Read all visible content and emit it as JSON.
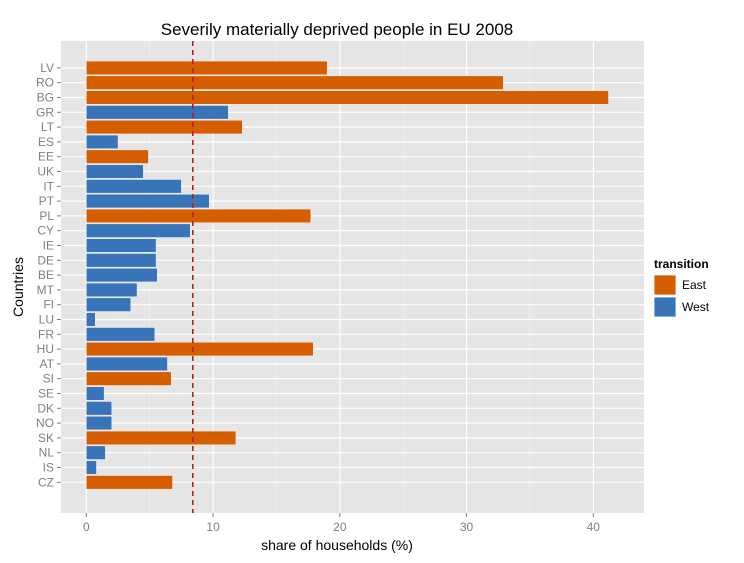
{
  "chart_data": {
    "type": "bar",
    "orientation": "horizontal",
    "title": "Severily materially deprived people in EU 2008",
    "xlabel": "share of households (%)",
    "ylabel": "Countries",
    "xlim": [
      -2,
      44
    ],
    "xticks": [
      0,
      10,
      20,
      30,
      40
    ],
    "grid": true,
    "legend_placement": "right",
    "legend_title": "transition",
    "groups": [
      {
        "name": "East",
        "color": "#D55E00"
      },
      {
        "name": "West",
        "color": "#3A74B8"
      }
    ],
    "reference_line": {
      "x": 8.4,
      "style": "dashed",
      "color": "#B22222"
    },
    "categories": [
      "LV",
      "RO",
      "BG",
      "GR",
      "LT",
      "ES",
      "EE",
      "UK",
      "IT",
      "PT",
      "PL",
      "CY",
      "IE",
      "DE",
      "BE",
      "MT",
      "FI",
      "LU",
      "FR",
      "HU",
      "AT",
      "SI",
      "SE",
      "DK",
      "NO",
      "SK",
      "NL",
      "IS",
      "CZ"
    ],
    "values": [
      19.0,
      32.9,
      41.2,
      11.2,
      12.3,
      2.5,
      4.9,
      4.5,
      7.5,
      9.7,
      17.7,
      8.2,
      5.5,
      5.5,
      5.6,
      4.0,
      3.5,
      0.7,
      5.4,
      17.9,
      6.4,
      6.7,
      1.4,
      2.0,
      2.0,
      11.8,
      1.5,
      0.8,
      6.8
    ],
    "group": [
      "East",
      "East",
      "East",
      "West",
      "East",
      "West",
      "East",
      "West",
      "West",
      "West",
      "East",
      "West",
      "West",
      "West",
      "West",
      "West",
      "West",
      "West",
      "West",
      "East",
      "West",
      "East",
      "West",
      "West",
      "West",
      "East",
      "West",
      "West",
      "East"
    ]
  }
}
